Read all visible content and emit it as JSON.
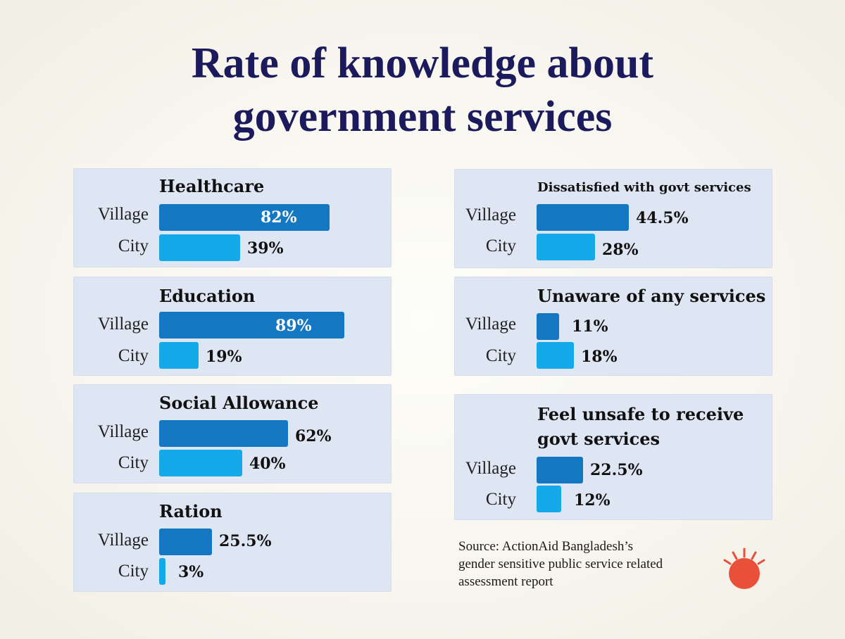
{
  "title": {
    "line1": "Rate of knowledge about",
    "line2": "government services"
  },
  "labels": {
    "village": "Village",
    "city": "City"
  },
  "colors": {
    "village": "#1477c2",
    "city": "#14a9e8",
    "title": "#1b1a5c",
    "logo": "#e8503a"
  },
  "chart_data": {
    "type": "bar",
    "orientation": "horizontal",
    "title": "Rate of knowledge about government services",
    "unit": "%",
    "series_names": [
      "Village",
      "City"
    ],
    "panels": [
      {
        "title": "Healthcare",
        "village": 82,
        "city": 39,
        "village_label": "82%",
        "city_label": "39%"
      },
      {
        "title": "Education",
        "village": 89,
        "city": 19,
        "village_label": "89%",
        "city_label": "19%"
      },
      {
        "title": "Social Allowance",
        "village": 62,
        "city": 40,
        "village_label": "62%",
        "city_label": "40%"
      },
      {
        "title": "Ration",
        "village": 25.5,
        "city": 3,
        "village_label": "25.5%",
        "city_label": "3%"
      },
      {
        "title": "Dissatisfied with govt services",
        "village": 44.5,
        "city": 28,
        "village_label": "44.5%",
        "city_label": "28%"
      },
      {
        "title": "Unaware of any services",
        "village": 11,
        "city": 18,
        "village_label": "11%",
        "city_label": "18%"
      },
      {
        "title_lines": [
          "Feel unsafe to receive",
          "govt services"
        ],
        "village": 22.5,
        "city": 12,
        "village_label": "22.5%",
        "city_label": "12%"
      }
    ]
  },
  "source": {
    "line1": "Source: ActionAid Bangladesh’s",
    "line2": "gender sensitive public service related",
    "line3": "assessment report"
  }
}
